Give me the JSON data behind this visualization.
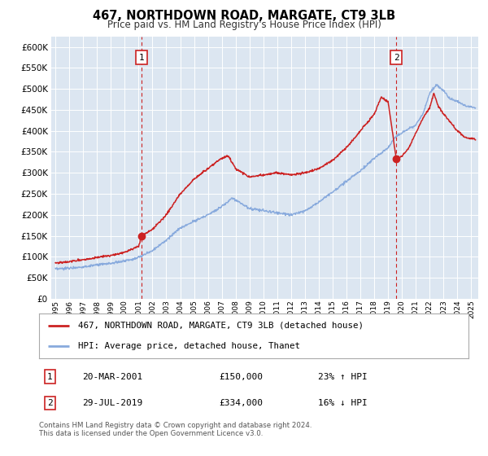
{
  "title": "467, NORTHDOWN ROAD, MARGATE, CT9 3LB",
  "subtitle": "Price paid vs. HM Land Registry's House Price Index (HPI)",
  "title_fontsize": 10.5,
  "subtitle_fontsize": 8.5,
  "plot_bg_color": "#dce6f1",
  "fig_bg_color": "#ffffff",
  "ytick_values": [
    0,
    50000,
    100000,
    150000,
    200000,
    250000,
    300000,
    350000,
    400000,
    450000,
    500000,
    550000,
    600000
  ],
  "ylim": [
    0,
    625000
  ],
  "xlim_start": 1994.7,
  "xlim_end": 2025.5,
  "hpi_color": "#88aadd",
  "sale_color": "#cc2222",
  "dashed_line_color": "#cc2222",
  "marker1_year": 2001.22,
  "marker1_value": 150000,
  "marker2_year": 2019.58,
  "marker2_value": 334000,
  "legend_sale_label": "467, NORTHDOWN ROAD, MARGATE, CT9 3LB (detached house)",
  "legend_hpi_label": "HPI: Average price, detached house, Thanet",
  "note1_label": "1",
  "note1_date": "20-MAR-2001",
  "note1_price": "£150,000",
  "note1_hpi": "23% ↑ HPI",
  "note2_label": "2",
  "note2_date": "29-JUL-2019",
  "note2_price": "£334,000",
  "note2_hpi": "16% ↓ HPI",
  "footer": "Contains HM Land Registry data © Crown copyright and database right 2024.\nThis data is licensed under the Open Government Licence v3.0.",
  "hpi_anchors": [
    [
      1995.0,
      70000
    ],
    [
      1996.0,
      73000
    ],
    [
      1997.0,
      76000
    ],
    [
      1998.0,
      80000
    ],
    [
      1999.0,
      84000
    ],
    [
      2000.0,
      90000
    ],
    [
      2001.0,
      98000
    ],
    [
      2002.0,
      115000
    ],
    [
      2003.0,
      140000
    ],
    [
      2004.0,
      168000
    ],
    [
      2005.0,
      185000
    ],
    [
      2006.0,
      200000
    ],
    [
      2007.0,
      220000
    ],
    [
      2007.8,
      240000
    ],
    [
      2008.5,
      225000
    ],
    [
      2009.0,
      215000
    ],
    [
      2010.0,
      210000
    ],
    [
      2011.0,
      205000
    ],
    [
      2012.0,
      200000
    ],
    [
      2013.0,
      210000
    ],
    [
      2014.0,
      230000
    ],
    [
      2015.0,
      255000
    ],
    [
      2016.0,
      280000
    ],
    [
      2017.0,
      305000
    ],
    [
      2018.0,
      335000
    ],
    [
      2019.0,
      360000
    ],
    [
      2019.5,
      385000
    ],
    [
      2020.0,
      395000
    ],
    [
      2021.0,
      415000
    ],
    [
      2021.5,
      440000
    ],
    [
      2022.0,
      490000
    ],
    [
      2022.5,
      510000
    ],
    [
      2023.0,
      495000
    ],
    [
      2023.5,
      475000
    ],
    [
      2024.0,
      470000
    ],
    [
      2024.5,
      460000
    ],
    [
      2025.3,
      455000
    ]
  ],
  "sale_anchors": [
    [
      1995.0,
      85000
    ],
    [
      1996.0,
      88000
    ],
    [
      1997.0,
      93000
    ],
    [
      1998.0,
      98000
    ],
    [
      1999.0,
      103000
    ],
    [
      2000.0,
      110000
    ],
    [
      2001.0,
      125000
    ],
    [
      2001.22,
      150000
    ],
    [
      2002.0,
      165000
    ],
    [
      2003.0,
      200000
    ],
    [
      2004.0,
      250000
    ],
    [
      2005.0,
      285000
    ],
    [
      2006.0,
      310000
    ],
    [
      2007.0,
      335000
    ],
    [
      2007.5,
      340000
    ],
    [
      2008.0,
      310000
    ],
    [
      2009.0,
      290000
    ],
    [
      2010.0,
      295000
    ],
    [
      2011.0,
      300000
    ],
    [
      2012.0,
      295000
    ],
    [
      2013.0,
      300000
    ],
    [
      2014.0,
      310000
    ],
    [
      2015.0,
      330000
    ],
    [
      2016.0,
      360000
    ],
    [
      2017.0,
      400000
    ],
    [
      2018.0,
      440000
    ],
    [
      2018.5,
      480000
    ],
    [
      2019.0,
      470000
    ],
    [
      2019.58,
      334000
    ],
    [
      2020.0,
      340000
    ],
    [
      2020.5,
      360000
    ],
    [
      2021.0,
      395000
    ],
    [
      2021.5,
      430000
    ],
    [
      2022.0,
      455000
    ],
    [
      2022.3,
      490000
    ],
    [
      2022.6,
      460000
    ],
    [
      2023.0,
      440000
    ],
    [
      2023.5,
      420000
    ],
    [
      2024.0,
      400000
    ],
    [
      2024.5,
      385000
    ],
    [
      2025.3,
      380000
    ]
  ]
}
